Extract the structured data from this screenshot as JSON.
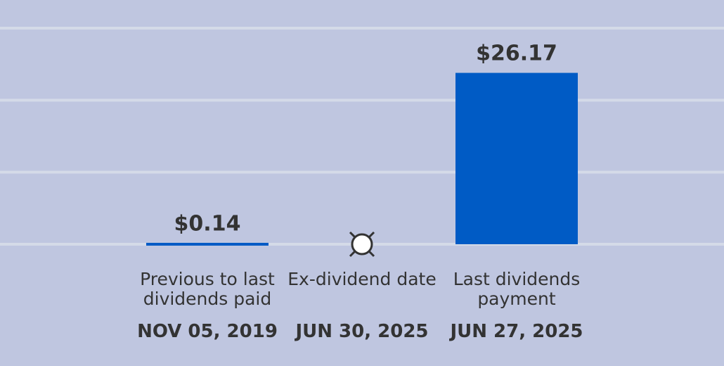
{
  "chart_data": {
    "type": "bar",
    "categories": [
      "Previous to last dividends paid",
      "Ex-dividend date",
      "Last dividends payment"
    ],
    "dates": [
      "NOV 05, 2019",
      "JUN 30, 2025",
      "JUN 27, 2025"
    ],
    "values": [
      0.14,
      null,
      26.17
    ],
    "value_labels": [
      "$0.14",
      null,
      "$26.17"
    ],
    "color": "#005bc5",
    "ylim": [
      0,
      33
    ],
    "yticks": [
      0,
      11,
      22,
      33
    ],
    "grid": true
  }
}
